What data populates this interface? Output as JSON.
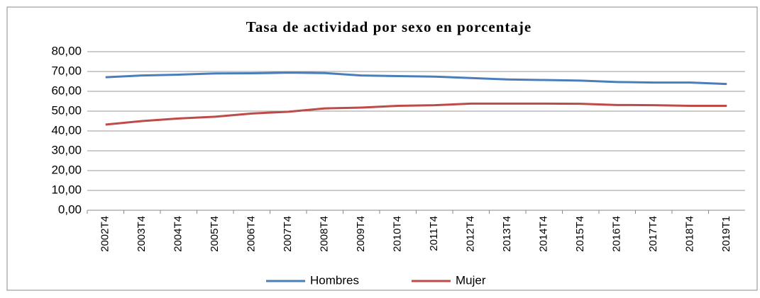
{
  "chart_data": {
    "type": "line",
    "title": "Tasa de actividad por sexo en porcentaje",
    "categories": [
      "2002T4",
      "2003T4",
      "2004T4",
      "2005T4",
      "2006T4",
      "2007T4",
      "2008T4",
      "2009T4",
      "2010T4",
      "2011T4",
      "2012T4",
      "2013T4",
      "2014T4",
      "2015T4",
      "2016T4",
      "2017T4",
      "2018T4",
      "2019T1"
    ],
    "series": [
      {
        "name": "Hombres",
        "color": "#4a7ebb",
        "values": [
          67.1,
          68.0,
          68.4,
          69.0,
          69.1,
          69.4,
          69.2,
          68.0,
          67.7,
          67.4,
          66.7,
          66.0,
          65.7,
          65.4,
          64.7,
          64.4,
          64.4,
          63.7
        ]
      },
      {
        "name": "Mujer",
        "color": "#be4b48",
        "values": [
          43.2,
          45.0,
          46.3,
          47.2,
          48.8,
          49.7,
          51.4,
          51.8,
          52.7,
          53.0,
          53.8,
          53.8,
          53.8,
          53.7,
          53.1,
          53.0,
          52.7,
          52.7
        ]
      }
    ],
    "ylim": [
      0,
      80
    ],
    "yticks": [
      {
        "value": 0,
        "label": "0,00"
      },
      {
        "value": 10,
        "label": "10,00"
      },
      {
        "value": 20,
        "label": "20,00"
      },
      {
        "value": 30,
        "label": "30,00"
      },
      {
        "value": 40,
        "label": "40,00"
      },
      {
        "value": 50,
        "label": "50,00"
      },
      {
        "value": 60,
        "label": "60,00"
      },
      {
        "value": 70,
        "label": "70,00"
      },
      {
        "value": 80,
        "label": "80,00"
      }
    ],
    "grid": true,
    "legend": "bottom"
  }
}
